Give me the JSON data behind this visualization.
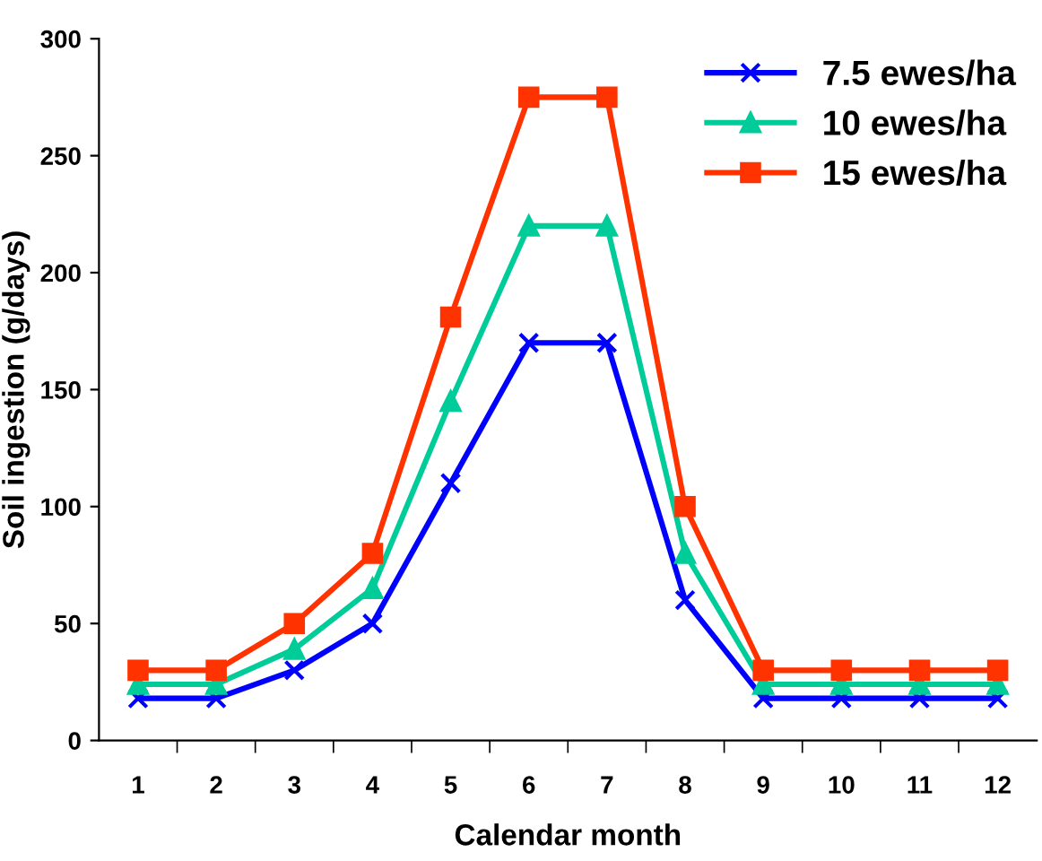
{
  "chart_data": {
    "type": "line",
    "xlabel": "Calendar month",
    "ylabel": "Soil ingestion (g/days)",
    "categories": [
      "1",
      "2",
      "3",
      "4",
      "5",
      "6",
      "7",
      "8",
      "9",
      "10",
      "11",
      "12"
    ],
    "ylim": [
      0,
      300
    ],
    "yticks": [
      0,
      50,
      100,
      150,
      200,
      250,
      300
    ],
    "grid": false,
    "legend": "top right",
    "line_style": "solid",
    "series": [
      {
        "name": "7.5 ewes/ha",
        "color": "#0000ff",
        "marker": "cross",
        "values": [
          18,
          18,
          30,
          50,
          110,
          170,
          170,
          60,
          18,
          18,
          18,
          18
        ]
      },
      {
        "name": "10 ewes/ha",
        "color": "#00cc99",
        "marker": "triangle",
        "values": [
          24,
          24,
          39,
          65,
          145,
          220,
          220,
          80,
          24,
          24,
          24,
          24
        ]
      },
      {
        "name": "15 ewes/ha",
        "color": "#ff3300",
        "marker": "square",
        "values": [
          30,
          30,
          50,
          80,
          181,
          275,
          275,
          100,
          30,
          30,
          30,
          30
        ]
      }
    ]
  }
}
